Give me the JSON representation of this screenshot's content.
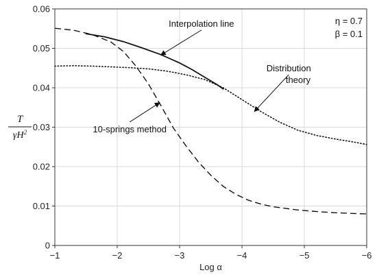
{
  "chart_data": {
    "type": "line",
    "title": "",
    "xlabel": "Log α",
    "ylabel": {
      "numerator": "T",
      "denominator_main": "γH",
      "denominator_sup": "2"
    },
    "xlim": [
      -1,
      -6
    ],
    "ylim": [
      0,
      0.06
    ],
    "x_ticks": [
      -1,
      -2,
      -3,
      -4,
      -5,
      -6
    ],
    "x_tick_labels": [
      "−1",
      "−2",
      "−3",
      "−4",
      "−5",
      "−6"
    ],
    "y_ticks": [
      0,
      0.01,
      0.02,
      0.03,
      0.04,
      0.05,
      0.06
    ],
    "y_tick_labels": [
      "0",
      "0.01",
      "0.02",
      "0.03",
      "0.04",
      "0.05",
      "0.06"
    ],
    "grid": true,
    "parameters": [
      "η = 0.7",
      "β = 0.1"
    ],
    "series": [
      {
        "style": "dashed",
        "x": [
          -1.0,
          -1.3,
          -1.6,
          -1.9,
          -2.1,
          -2.3,
          -2.5,
          -2.7,
          -2.9,
          -3.1,
          -3.3,
          -3.5,
          -3.7,
          -3.9,
          -4.1,
          -4.3,
          -4.5,
          -4.7,
          -4.9,
          -5.2,
          -5.5,
          -5.8,
          -6.0
        ],
        "y": [
          0.0551,
          0.0546,
          0.0535,
          0.0516,
          0.0492,
          0.0455,
          0.041,
          0.0355,
          0.0298,
          0.0253,
          0.0212,
          0.0178,
          0.015,
          0.013,
          0.0115,
          0.0105,
          0.0098,
          0.0094,
          0.009,
          0.0086,
          0.0083,
          0.0081,
          0.008
        ]
      },
      {
        "style": "dotted",
        "x": [
          -1.0,
          -1.3,
          -1.6,
          -1.9,
          -2.2,
          -2.5,
          -2.8,
          -3.1,
          -3.4,
          -3.7,
          -4.0,
          -4.3,
          -4.6,
          -4.9,
          -5.2,
          -5.5,
          -5.8,
          -6.0
        ],
        "y": [
          0.0455,
          0.0456,
          0.0455,
          0.0453,
          0.0451,
          0.0448,
          0.0442,
          0.0433,
          0.0421,
          0.04,
          0.037,
          0.034,
          0.0313,
          0.0292,
          0.0279,
          0.027,
          0.0262,
          0.0256
        ]
      },
      {
        "style": "solid",
        "x": [
          -1.5,
          -1.8,
          -2.1,
          -2.4,
          -2.7,
          -3.0,
          -3.2,
          -3.4,
          -3.6,
          -3.7
        ],
        "y": [
          0.0537,
          0.0529,
          0.0517,
          0.0501,
          0.0484,
          0.0463,
          0.0446,
          0.0427,
          0.0408,
          0.0397
        ]
      }
    ],
    "annotations": [
      {
        "text": "Interpolation line",
        "x": -3.35,
        "y": 0.0555,
        "arrow_to": [
          -2.7,
          0.0483
        ]
      },
      {
        "text": "Distribution",
        "x": -4.75,
        "y": 0.0442,
        "arrow_to": [
          -4.2,
          0.034
        ]
      },
      {
        "text": "theory",
        "x": -4.9,
        "y": 0.0412
      },
      {
        "text": "10-springs method",
        "x": -2.2,
        "y": 0.0287,
        "arrow_to": [
          -2.68,
          0.0362
        ]
      }
    ]
  }
}
